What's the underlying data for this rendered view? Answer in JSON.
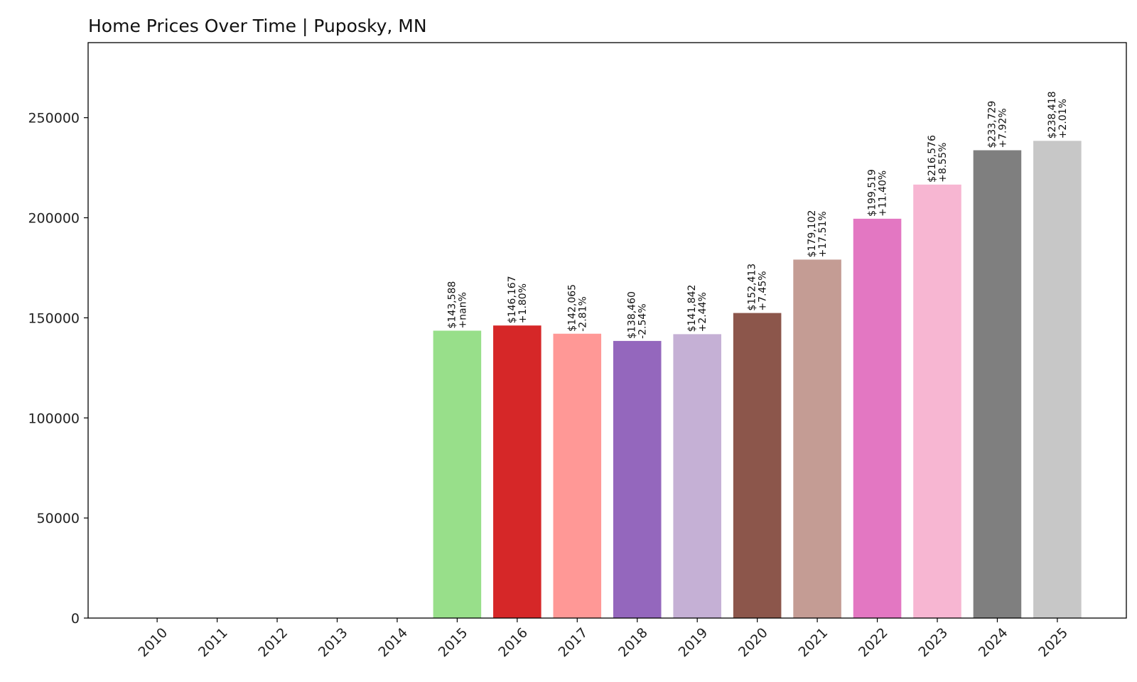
{
  "chart_data": {
    "type": "bar",
    "title": "Home Prices Over Time | Puposky, MN",
    "xlabel": "",
    "ylabel": "",
    "categories": [
      "2010",
      "2011",
      "2012",
      "2013",
      "2014",
      "2015",
      "2016",
      "2017",
      "2018",
      "2019",
      "2020",
      "2021",
      "2022",
      "2023",
      "2024",
      "2025"
    ],
    "values": [
      0,
      0,
      0,
      0,
      0,
      143588,
      146167,
      142065,
      138460,
      141842,
      152413,
      179102,
      199519,
      216576,
      233729,
      238418
    ],
    "value_labels": [
      "",
      "",
      "",
      "",
      "",
      "$143,588",
      "$146,167",
      "$142,065",
      "$138,460",
      "$141,842",
      "$152,413",
      "$179,102",
      "$199,519",
      "$216,576",
      "$233,729",
      "$238,418"
    ],
    "change_labels": [
      "",
      "",
      "",
      "",
      "",
      "+nan%",
      "+1.80%",
      "-2.81%",
      "-2.54%",
      "+2.44%",
      "+7.45%",
      "+17.51%",
      "+11.40%",
      "+8.55%",
      "+7.92%",
      "+2.01%"
    ],
    "colors": [
      "#1f77b4",
      "#aec7e8",
      "#ff7f0e",
      "#ffbb78",
      "#2ca02c",
      "#98df8a",
      "#d62728",
      "#ff9896",
      "#9467bd",
      "#c5b0d5",
      "#8c564b",
      "#c49c94",
      "#e377c2",
      "#f7b6d2",
      "#7f7f7f",
      "#c7c7c7"
    ],
    "ylim": [
      0,
      287500
    ],
    "yticks": [
      0,
      50000,
      100000,
      150000,
      200000,
      250000
    ],
    "grid": false,
    "legend": "none"
  }
}
